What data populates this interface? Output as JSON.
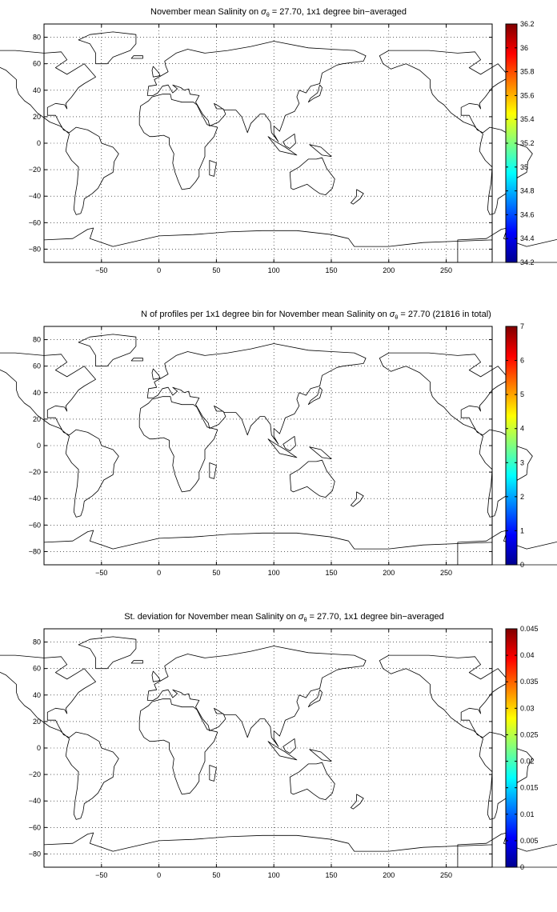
{
  "figure": {
    "panels": [
      {
        "id": "salinity-mean",
        "title_prefix": "November mean Salinity on",
        "title_suffix": " = 27.70, 1x1 degree bin−averaged",
        "sigma_sub": "θ",
        "xlim": [
          -100,
          290
        ],
        "ylim": [
          -90,
          90
        ],
        "xticks": [
          -50,
          0,
          50,
          100,
          150,
          200,
          250
        ],
        "yticks": [
          -80,
          -60,
          -40,
          -20,
          0,
          20,
          40,
          60,
          80
        ],
        "colorbar": {
          "min": 34.2,
          "max": 36.2,
          "ticks": [
            "34.2",
            "34.4",
            "34.6",
            "34.8",
            "35",
            "35.2",
            "35.4",
            "35.6",
            "35.8",
            "36",
            "36.2"
          ]
        }
      },
      {
        "id": "profile-count",
        "title_prefix": "N of profiles per 1x1 degree bin for November mean Salinity on",
        "title_suffix": " = 27.70 (21816 in total)",
        "sigma_sub": "θ",
        "xlim": [
          -100,
          290
        ],
        "ylim": [
          -90,
          90
        ],
        "xticks": [
          -50,
          0,
          50,
          100,
          150,
          200,
          250
        ],
        "yticks": [
          -80,
          -60,
          -40,
          -20,
          0,
          20,
          40,
          60,
          80
        ],
        "colorbar": {
          "min": 0,
          "max": 7,
          "ticks": [
            "0",
            "1",
            "2",
            "3",
            "4",
            "5",
            "6",
            "7"
          ]
        }
      },
      {
        "id": "salinity-std",
        "title_prefix": "St. deviation for November mean Salinity on",
        "title_suffix": " = 27.70, 1x1 degree bin−averaged",
        "sigma_sub": "θ",
        "xlim": [
          -100,
          290
        ],
        "ylim": [
          -90,
          90
        ],
        "xticks": [
          -50,
          0,
          50,
          100,
          150,
          200,
          250
        ],
        "yticks": [
          -80,
          -60,
          -40,
          -20,
          0,
          20,
          40,
          60,
          80
        ],
        "colorbar": {
          "min": 0,
          "max": 0.045,
          "ticks": [
            "0",
            "0.005",
            "0.01",
            "0.015",
            "0.02",
            "0.025",
            "0.03",
            "0.035",
            "0.04",
            "0.045"
          ]
        }
      }
    ]
  }
}
